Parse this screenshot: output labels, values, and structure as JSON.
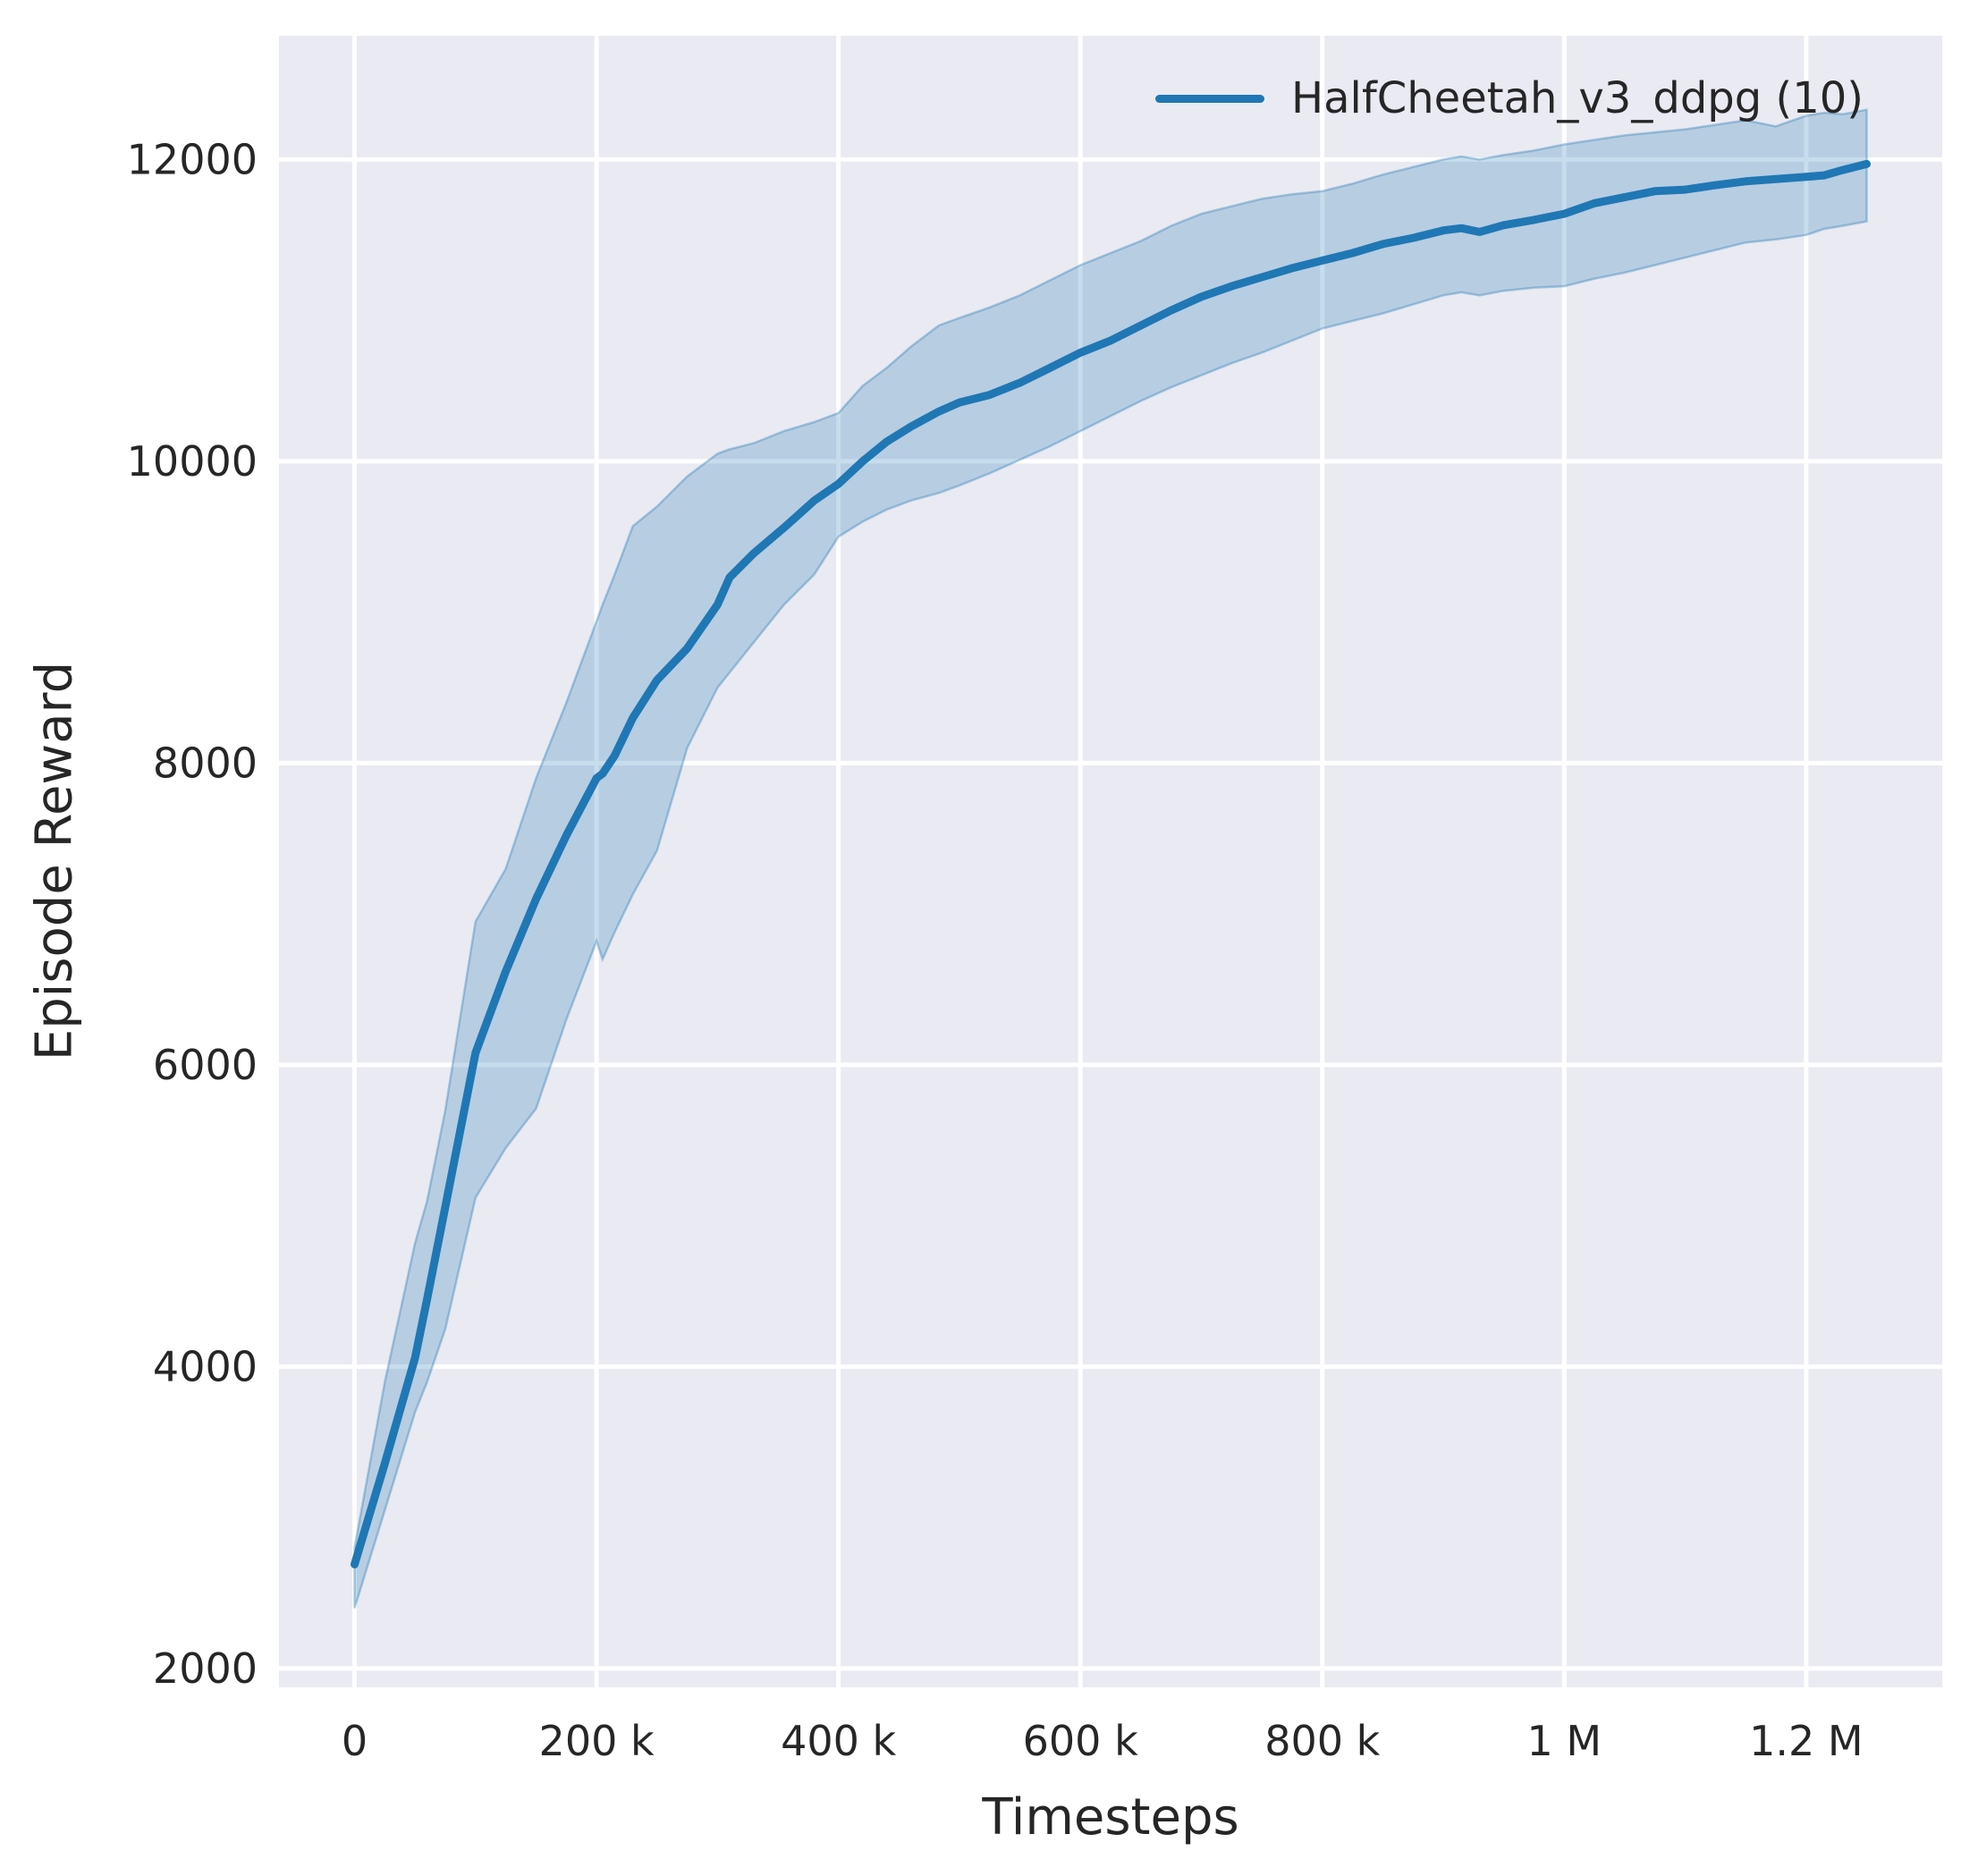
{
  "chart_data": {
    "type": "line",
    "title": "",
    "xlabel": "Timesteps",
    "ylabel": "Episode Reward",
    "grid": true,
    "legend_position": "upper right",
    "colors": {
      "axes_background": "#eaeaf2",
      "grid_color": "#ffffff",
      "line_color": "#1f77b4",
      "band_fill_alpha": 0.25,
      "band_edge_alpha": 0.35,
      "text_color": "#262626"
    },
    "xlim": [
      -62500,
      1312500
    ],
    "ylim": [
      1875,
      12820
    ],
    "x_ticks": [
      {
        "value": 0,
        "label": "0"
      },
      {
        "value": 200000,
        "label": "200 k"
      },
      {
        "value": 400000,
        "label": "400 k"
      },
      {
        "value": 600000,
        "label": "600 k"
      },
      {
        "value": 800000,
        "label": "800 k"
      },
      {
        "value": 1000000,
        "label": "1 M"
      },
      {
        "value": 1200000,
        "label": "1.2 M"
      }
    ],
    "y_ticks": [
      {
        "value": 2000,
        "label": "2000"
      },
      {
        "value": 4000,
        "label": "4000"
      },
      {
        "value": 6000,
        "label": "6000"
      },
      {
        "value": 8000,
        "label": "8000"
      },
      {
        "value": 10000,
        "label": "10000"
      },
      {
        "value": 12000,
        "label": "12000"
      }
    ],
    "series": [
      {
        "name": "HalfCheetah_v3_ddpg (10)",
        "x": [
          0,
          25000,
          50000,
          60000,
          75000,
          100000,
          125000,
          150000,
          175000,
          200000,
          205000,
          215000,
          230000,
          250000,
          275000,
          300000,
          310000,
          330000,
          355000,
          380000,
          400000,
          420000,
          440000,
          460000,
          483000,
          500000,
          525000,
          550000,
          575000,
          600000,
          625000,
          650000,
          675000,
          700000,
          725000,
          750000,
          775000,
          800000,
          825000,
          850000,
          875000,
          900000,
          915000,
          930000,
          950000,
          975000,
          1000000,
          1025000,
          1050000,
          1075000,
          1100000,
          1125000,
          1150000,
          1175000,
          1200000,
          1215000,
          1230000,
          1250000
        ],
        "mean": [
          2690,
          3360,
          4060,
          4450,
          5060,
          6080,
          6620,
          7100,
          7520,
          7900,
          7930,
          8050,
          8300,
          8550,
          8760,
          9050,
          9230,
          9390,
          9560,
          9740,
          9850,
          10000,
          10130,
          10230,
          10330,
          10390,
          10440,
          10520,
          10620,
          10720,
          10800,
          10900,
          11000,
          11090,
          11160,
          11220,
          11280,
          11330,
          11380,
          11440,
          11480,
          11530,
          11545,
          11520,
          11565,
          11600,
          11640,
          11710,
          11750,
          11790,
          11800,
          11830,
          11855,
          11870,
          11885,
          11895,
          11930,
          11970
        ],
        "lower": [
          2400,
          3050,
          3700,
          3900,
          4250,
          5120,
          5450,
          5710,
          6300,
          6820,
          6700,
          6880,
          7130,
          7420,
          8100,
          8500,
          8600,
          8800,
          9050,
          9250,
          9500,
          9600,
          9680,
          9740,
          9790,
          9840,
          9920,
          10010,
          10100,
          10200,
          10300,
          10400,
          10490,
          10570,
          10650,
          10720,
          10800,
          10880,
          10930,
          10980,
          11040,
          11100,
          11120,
          11100,
          11130,
          11150,
          11160,
          11210,
          11250,
          11300,
          11350,
          11400,
          11450,
          11470,
          11500,
          11540,
          11560,
          11590
        ],
        "upper": [
          2800,
          3900,
          4820,
          5100,
          5700,
          6950,
          7300,
          7900,
          8400,
          8940,
          9050,
          9250,
          9570,
          9700,
          9900,
          10050,
          10080,
          10120,
          10200,
          10260,
          10320,
          10500,
          10620,
          10760,
          10900,
          10950,
          11020,
          11100,
          11200,
          11300,
          11380,
          11460,
          11560,
          11640,
          11690,
          11740,
          11770,
          11790,
          11840,
          11900,
          11950,
          12000,
          12020,
          12000,
          12030,
          12060,
          12100,
          12130,
          12160,
          12180,
          12200,
          12230,
          12260,
          12220,
          12290,
          12310,
          12300,
          12330
        ]
      }
    ]
  }
}
